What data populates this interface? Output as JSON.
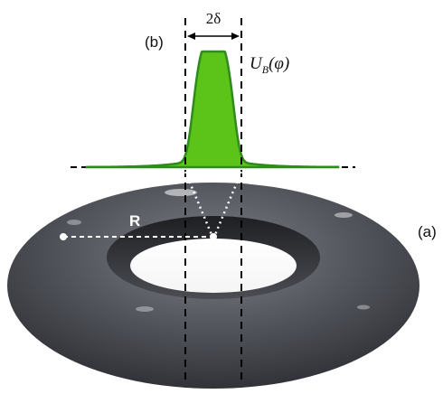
{
  "labels": {
    "panel_b": "(b)",
    "panel_a": "(a)",
    "width": "2δ",
    "potential_main": "U",
    "potential_sub": "B",
    "potential_arg": "(φ)",
    "radius": "R"
  },
  "colors": {
    "potential_fill": "#5cc319",
    "potential_stroke": "#2e8b1c",
    "torus_body": "#4a4c52",
    "guides": "#000000",
    "radius_line": "#ffffff"
  },
  "chart_data": {
    "type": "area",
    "description_curve": "peaked barrier profile",
    "x_domain": [
      -1,
      1
    ],
    "center": 0,
    "half_width": 0.18
  }
}
